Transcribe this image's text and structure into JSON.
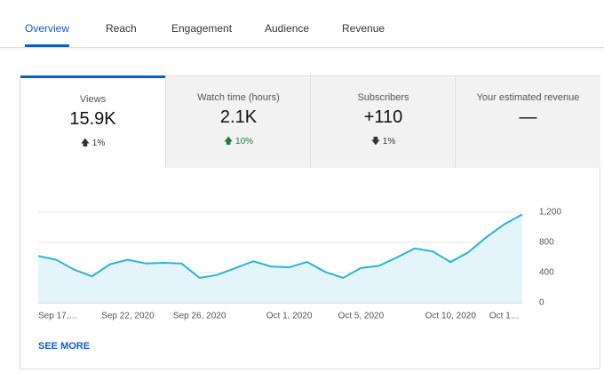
{
  "tabs": [
    "Overview",
    "Reach",
    "Engagement",
    "Audience",
    "Revenue"
  ],
  "cards": [
    {
      "label": "Views",
      "value": "15.9K",
      "change": "1%"
    },
    {
      "label": "Watch time (hours)",
      "value": "2.1K",
      "change": "10%"
    },
    {
      "label": "Subscribers",
      "value": "+110",
      "change": "1%"
    },
    {
      "label": "Your estimated revenue",
      "value": "—"
    }
  ],
  "chart_data": {
    "type": "line",
    "categories": [
      "Sep 17,…",
      null,
      null,
      null,
      null,
      "Sep 22, 2020",
      null,
      null,
      null,
      "Sep 26, 2020",
      null,
      null,
      null,
      null,
      "Oct 1, 2020",
      null,
      null,
      null,
      "Oct 5, 2020",
      null,
      null,
      null,
      null,
      "Oct 10, 2020",
      null,
      null,
      "Oct 1…",
      null
    ],
    "values": [
      620,
      570,
      440,
      350,
      510,
      570,
      520,
      530,
      520,
      330,
      370,
      460,
      550,
      480,
      470,
      540,
      410,
      330,
      460,
      490,
      600,
      720,
      680,
      540,
      670,
      870,
      1040,
      1170
    ],
    "color": "#2bb3d6",
    "ylim": [
      0,
      1200
    ],
    "yticks": [
      0,
      400,
      800,
      {
        "value": 1200,
        "label": "1,200"
      }
    ],
    "grid": true
  },
  "see_more": "SEE MORE"
}
